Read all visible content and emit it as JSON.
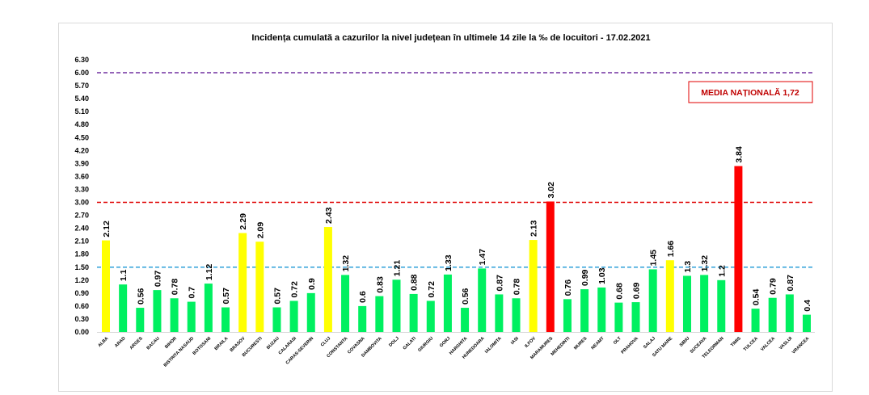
{
  "chart_data": {
    "type": "bar",
    "title": "Incidența cumulată a cazurilor la nivel județean în ultimele 14 zile la ‰ de locuitori - 17.02.2021",
    "xlabel": "",
    "ylabel": "",
    "ylim": [
      0,
      6.3
    ],
    "yticks": [
      "0.00",
      "0.30",
      "0.60",
      "0.90",
      "1.20",
      "1.50",
      "1.80",
      "2.10",
      "2.40",
      "2.70",
      "3.00",
      "3.30",
      "3.60",
      "3.90",
      "4.20",
      "4.50",
      "4.80",
      "5.10",
      "5.40",
      "5.70",
      "6.00",
      "6.30"
    ],
    "grid": false,
    "categories": [
      "ALBA",
      "ARAD",
      "ARGES",
      "BACAU",
      "BIHOR",
      "BISTRITA NASAUD",
      "BOTOSANI",
      "BRAILA",
      "BRASOV",
      "BUCURESTI",
      "BUZAU",
      "CALARASI",
      "CARAS-SEVERIN",
      "CLUJ",
      "CONSTANTA",
      "COVASNA",
      "DAMBOVITA",
      "DOLJ",
      "GALATI",
      "GIURGIU",
      "GORJ",
      "HARGHITA",
      "HUNEDOARA",
      "IALOMITA",
      "IASI",
      "ILFOV",
      "MARAMURES",
      "MEHEDINTI",
      "MURES",
      "NEAMT",
      "OLT",
      "PRAHOVA",
      "SALAJ",
      "SATU MARE",
      "SIBIU",
      "SUCEAVA",
      "TELEORMAN",
      "TIMIS",
      "TULCEA",
      "VALCEA",
      "VASLUI",
      "VRANCEA"
    ],
    "values": [
      2.12,
      1.1,
      0.56,
      0.97,
      0.78,
      0.7,
      1.12,
      0.57,
      2.29,
      2.09,
      0.57,
      0.72,
      0.9,
      2.43,
      1.32,
      0.6,
      0.83,
      1.21,
      0.88,
      0.72,
      1.33,
      0.56,
      1.47,
      0.87,
      0.78,
      2.13,
      3.02,
      0.76,
      0.99,
      1.03,
      0.68,
      0.69,
      1.45,
      1.66,
      1.3,
      1.32,
      1.2,
      3.84,
      0.54,
      0.79,
      0.87,
      0.4
    ],
    "value_labels": [
      "2.12",
      "1.1",
      "0.56",
      "0.97",
      "0.78",
      "0.7",
      "1.12",
      "0.57",
      "2.29",
      "2.09",
      "0.57",
      "0.72",
      "0.9",
      "2.43",
      "1.32",
      "0.6",
      "0.83",
      "1.21",
      "0.88",
      "0.72",
      "1.33",
      "0.56",
      "1.47",
      "0.87",
      "0.78",
      "2.13",
      "3.02",
      "0.76",
      "0.99",
      "1.03",
      "0.68",
      "0.69",
      "1.45",
      "1.66",
      "1.3",
      "1.32",
      "1.2",
      "3.84",
      "0.54",
      "0.79",
      "0.87",
      "0.4"
    ],
    "thresholds": [
      {
        "value": 1.5,
        "color": "#2e9fd8"
      },
      {
        "value": 3.0,
        "color": "#e00000"
      },
      {
        "value": 6.0,
        "color": "#7030a0"
      }
    ],
    "colors": {
      "low": "#00f060",
      "mid": "#ffff00",
      "high": "#ff0000"
    },
    "legend": "MEDIA NAȚIONALĂ  1,72"
  }
}
